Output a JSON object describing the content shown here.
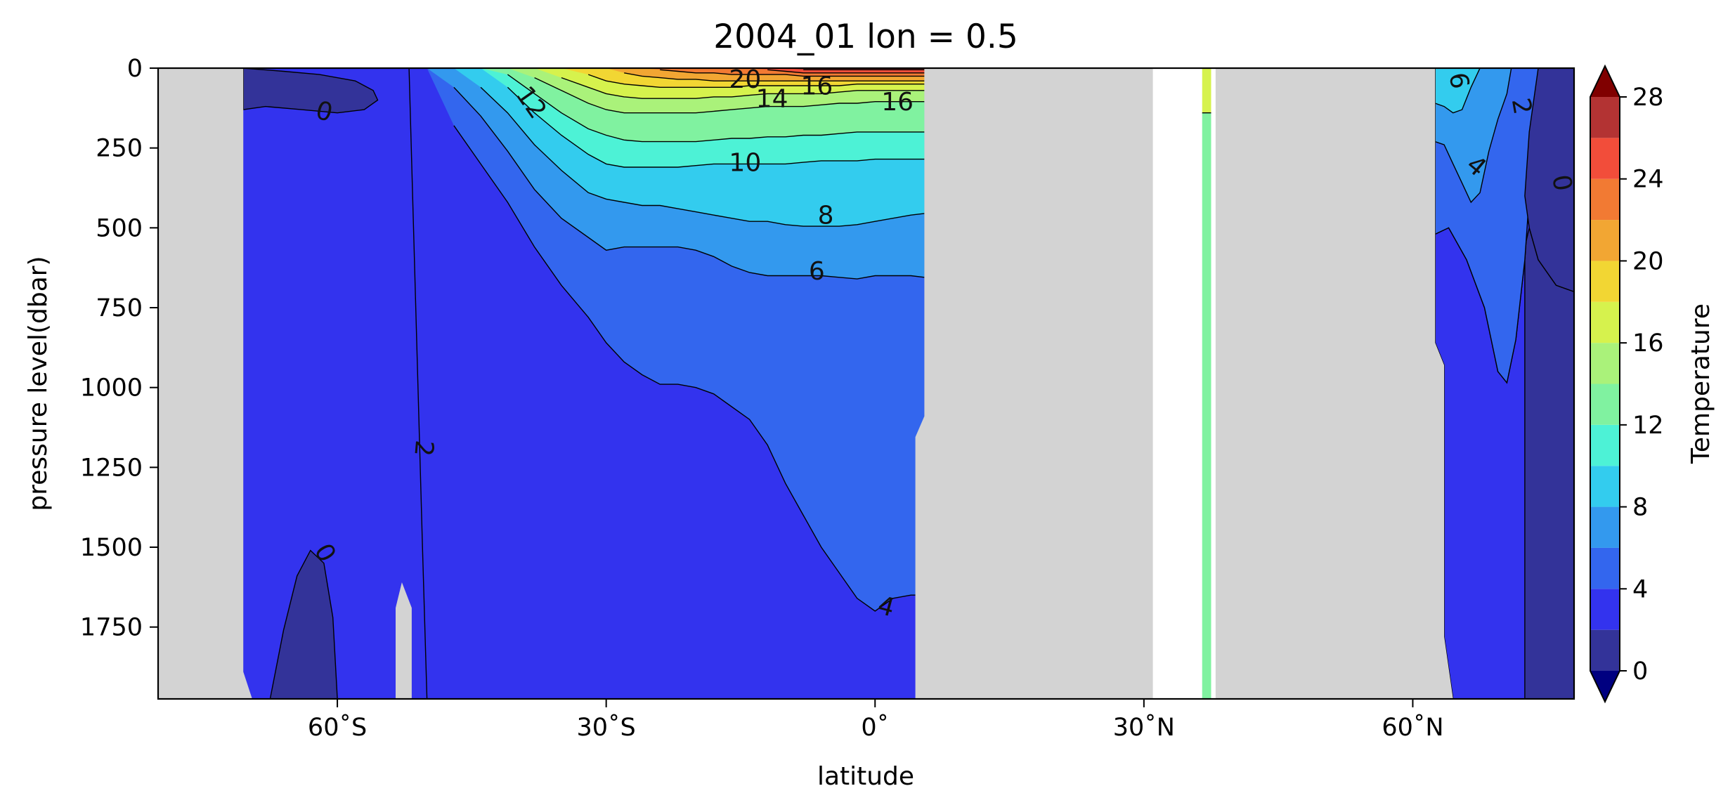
{
  "chart_data": {
    "type": "filled-contour",
    "title": "2004_01 lon = 0.5",
    "xlabel": "latitude",
    "ylabel": "pressure level(dbar)",
    "colorbar_label": "Temperature",
    "xlim": [
      -80,
      78
    ],
    "ylim": [
      1975,
      0
    ],
    "x_ticks": [
      {
        "value": -60,
        "label": "60˚S"
      },
      {
        "value": -30,
        "label": "30˚S"
      },
      {
        "value": 0,
        "label": "0˚"
      },
      {
        "value": 30,
        "label": "30˚N"
      },
      {
        "value": 60,
        "label": "60˚N"
      }
    ],
    "y_ticks": [
      {
        "value": 0,
        "label": "0"
      },
      {
        "value": 250,
        "label": "250"
      },
      {
        "value": 500,
        "label": "500"
      },
      {
        "value": 750,
        "label": "750"
      },
      {
        "value": 1000,
        "label": "1000"
      },
      {
        "value": 1250,
        "label": "1250"
      },
      {
        "value": 1500,
        "label": "1500"
      },
      {
        "value": 1750,
        "label": "1750"
      }
    ],
    "levels": [
      0,
      2,
      4,
      6,
      8,
      10,
      12,
      14,
      16,
      18,
      20,
      22,
      24,
      26,
      28
    ],
    "colorbar_ticks": [
      {
        "value": 0,
        "label": "0"
      },
      {
        "value": 4,
        "label": "4"
      },
      {
        "value": 8,
        "label": "8"
      },
      {
        "value": 12,
        "label": "12"
      },
      {
        "value": 16,
        "label": "16"
      },
      {
        "value": 20,
        "label": "20"
      },
      {
        "value": 24,
        "label": "24"
      },
      {
        "value": 28,
        "label": "28"
      }
    ],
    "level_colors": [
      "#333399",
      "#3333ee",
      "#3366ee",
      "#3399ee",
      "#33ccee",
      "#4df2d6",
      "#80f2a0",
      "#aaf27a",
      "#d6f24d",
      "#f2d633",
      "#f2a633",
      "#f27a33",
      "#f24d3a",
      "#b33333"
    ],
    "under_color": "#000080",
    "over_color": "#800000",
    "missing_color": "#d3d3d3",
    "masked_regions": [
      {
        "name": "antarctica",
        "points": [
          [
            -80,
            0
          ],
          [
            -70.5,
            0
          ],
          [
            -70.5,
            1890
          ],
          [
            -69.5,
            1975
          ],
          [
            -80,
            1975
          ]
        ]
      },
      {
        "name": "ridge",
        "points": [
          [
            -53.5,
            1975
          ],
          [
            -53.5,
            1690
          ],
          [
            -52.8,
            1610
          ],
          [
            -51.7,
            1690
          ],
          [
            -51.7,
            1975
          ]
        ]
      },
      {
        "name": "africa",
        "points": [
          [
            5.5,
            0
          ],
          [
            31,
            0
          ],
          [
            31,
            1975
          ],
          [
            4.5,
            1975
          ],
          [
            4.5,
            1155
          ],
          [
            5.5,
            1090
          ]
        ]
      },
      {
        "name": "europe",
        "points": [
          [
            38,
            0
          ],
          [
            62.5,
            0
          ],
          [
            62.5,
            860
          ],
          [
            63.5,
            930
          ],
          [
            63.5,
            1780
          ],
          [
            64.5,
            1975
          ],
          [
            38,
            1975
          ]
        ]
      }
    ],
    "strips": [
      {
        "name": "strait-upper",
        "x": [
          36.5,
          37.5
        ],
        "y": [
          0,
          140
        ],
        "value": 17
      },
      {
        "name": "strait-lower",
        "x": [
          36.5,
          37.5
        ],
        "y": [
          140,
          1975
        ],
        "value": 13
      }
    ],
    "profile_x": [
      -70.5,
      -65,
      -60,
      -55,
      -53,
      -50,
      -47,
      -44,
      -41,
      -38,
      -35,
      -32,
      -30,
      -28,
      -26,
      -24,
      -22,
      -20,
      -18,
      -16,
      -14,
      -12,
      -10,
      -8,
      -6,
      -4,
      -2,
      0,
      2,
      4,
      5.5
    ],
    "profile_depths": {
      "2": [
        1975,
        1975,
        1975,
        1975,
        1975,
        1975,
        1975,
        1975,
        1975,
        1975,
        1975,
        1975,
        1975,
        1975,
        1975,
        1975,
        1975,
        1975,
        1975,
        1975,
        1975,
        1975,
        1975,
        1975,
        1975,
        1975,
        1975,
        1975,
        1975,
        1975,
        1975
      ],
      "4": [
        0,
        0,
        0,
        0,
        0,
        0,
        180,
        300,
        420,
        560,
        680,
        780,
        860,
        920,
        960,
        990,
        990,
        1000,
        1020,
        1060,
        1100,
        1180,
        1300,
        1400,
        1500,
        1580,
        1660,
        1700,
        1660,
        1650,
        1650
      ],
      "6": [
        0,
        0,
        0,
        0,
        0,
        0,
        60,
        150,
        260,
        380,
        470,
        530,
        570,
        560,
        560,
        560,
        560,
        570,
        590,
        620,
        640,
        650,
        650,
        650,
        650,
        655,
        660,
        650,
        650,
        650,
        655
      ],
      "8": [
        0,
        0,
        0,
        0,
        0,
        0,
        0,
        60,
        140,
        240,
        320,
        390,
        410,
        420,
        430,
        430,
        440,
        450,
        460,
        470,
        480,
        480,
        490,
        495,
        495,
        495,
        490,
        480,
        470,
        460,
        455
      ],
      "10": [
        0,
        0,
        0,
        0,
        0,
        0,
        0,
        0,
        60,
        140,
        210,
        270,
        300,
        310,
        310,
        310,
        310,
        305,
        300,
        300,
        300,
        300,
        300,
        295,
        290,
        290,
        290,
        285,
        285,
        285,
        285
      ],
      "12": [
        0,
        0,
        0,
        0,
        0,
        0,
        0,
        0,
        20,
        80,
        140,
        190,
        210,
        225,
        230,
        230,
        230,
        230,
        225,
        220,
        220,
        215,
        215,
        210,
        210,
        205,
        200,
        200,
        200,
        200,
        200
      ],
      "14": [
        0,
        0,
        0,
        0,
        0,
        0,
        0,
        0,
        0,
        30,
        70,
        110,
        130,
        140,
        140,
        140,
        140,
        140,
        135,
        130,
        125,
        120,
        120,
        120,
        115,
        110,
        110,
        105,
        105,
        105,
        105
      ],
      "16": [
        0,
        0,
        0,
        0,
        0,
        0,
        0,
        0,
        0,
        0,
        30,
        60,
        80,
        90,
        95,
        95,
        95,
        95,
        90,
        90,
        85,
        80,
        80,
        80,
        80,
        75,
        70,
        70,
        70,
        70,
        70
      ],
      "18": [
        0,
        0,
        0,
        0,
        0,
        0,
        0,
        0,
        0,
        0,
        0,
        20,
        40,
        50,
        55,
        60,
        60,
        60,
        60,
        60,
        55,
        55,
        55,
        55,
        55,
        55,
        50,
        50,
        50,
        50,
        50
      ],
      "20": [
        0,
        0,
        0,
        0,
        0,
        0,
        0,
        0,
        0,
        0,
        0,
        0,
        0,
        15,
        25,
        30,
        35,
        35,
        40,
        40,
        40,
        40,
        40,
        40,
        40,
        40,
        40,
        40,
        40,
        40,
        40
      ],
      "22": [
        0,
        0,
        0,
        0,
        0,
        0,
        0,
        0,
        0,
        0,
        0,
        0,
        0,
        0,
        0,
        5,
        10,
        15,
        15,
        20,
        20,
        20,
        20,
        25,
        25,
        25,
        25,
        25,
        25,
        25,
        25
      ],
      "24": [
        0,
        0,
        0,
        0,
        0,
        0,
        0,
        0,
        0,
        0,
        0,
        0,
        0,
        0,
        0,
        0,
        0,
        0,
        0,
        0,
        0,
        5,
        10,
        15,
        15,
        15,
        15,
        15,
        15,
        15,
        15
      ],
      "26": [
        0,
        0,
        0,
        0,
        0,
        0,
        0,
        0,
        0,
        0,
        0,
        0,
        0,
        0,
        0,
        0,
        0,
        0,
        0,
        0,
        0,
        0,
        0,
        5,
        5,
        5,
        5,
        5,
        5,
        5,
        5
      ]
    },
    "cold_pools": [
      {
        "name": "cold-pool-surface",
        "level": 0,
        "points": [
          [
            -70.5,
            0
          ],
          [
            -70.5,
            130
          ],
          [
            -68,
            120
          ],
          [
            -64,
            130
          ],
          [
            -60,
            140
          ],
          [
            -57,
            130
          ],
          [
            -55.5,
            100
          ],
          [
            -56,
            70
          ],
          [
            -58,
            40
          ],
          [
            -62,
            20
          ],
          [
            -66,
            10
          ]
        ]
      },
      {
        "name": "cold-pool-bottom",
        "level": 0,
        "points": [
          [
            -67.5,
            1975
          ],
          [
            -66,
            1760
          ],
          [
            -64.5,
            1590
          ],
          [
            -63,
            1510
          ],
          [
            -61.5,
            1550
          ],
          [
            -60.5,
            1720
          ],
          [
            -60,
            1975
          ]
        ]
      },
      {
        "name": "arctic-band",
        "level": 0,
        "points": [
          [
            78,
            0
          ],
          [
            74,
            0
          ],
          [
            73,
            200
          ],
          [
            72.5,
            400
          ],
          [
            73,
            500
          ],
          [
            74,
            600
          ],
          [
            76,
            680
          ],
          [
            78,
            700
          ]
        ]
      }
    ],
    "north_regions": [
      {
        "name": "north-2",
        "level": 2,
        "points": [
          [
            64.5,
            1975
          ],
          [
            63.5,
            1780
          ],
          [
            63.5,
            930
          ],
          [
            62.5,
            860
          ],
          [
            62.5,
            520
          ],
          [
            64,
            500
          ],
          [
            66,
            600
          ],
          [
            68,
            750
          ],
          [
            69.5,
            950
          ],
          [
            70.5,
            985
          ],
          [
            71.5,
            850
          ],
          [
            72.5,
            600
          ],
          [
            73,
            400
          ],
          [
            73.5,
            200
          ],
          [
            74,
            0
          ],
          [
            78,
            0
          ],
          [
            78,
            700
          ],
          [
            76,
            680
          ],
          [
            74,
            600
          ],
          [
            73,
            500
          ],
          [
            72.5,
            560
          ],
          [
            72.5,
            1975
          ]
        ]
      },
      {
        "name": "north-4",
        "level": 4,
        "points": [
          [
            62.5,
            0
          ],
          [
            74,
            0
          ],
          [
            73.5,
            200
          ],
          [
            73,
            400
          ],
          [
            72.5,
            600
          ],
          [
            71.5,
            850
          ],
          [
            70.5,
            985
          ],
          [
            69.5,
            950
          ],
          [
            68,
            750
          ],
          [
            66,
            600
          ],
          [
            64,
            500
          ],
          [
            62.5,
            520
          ]
        ]
      },
      {
        "name": "north-6",
        "level": 6,
        "points": [
          [
            62.5,
            0
          ],
          [
            71,
            0
          ],
          [
            70.5,
            80
          ],
          [
            69.5,
            160
          ],
          [
            68.5,
            260
          ],
          [
            67.5,
            390
          ],
          [
            66.5,
            420
          ],
          [
            65.5,
            360
          ],
          [
            64.5,
            300
          ],
          [
            63.5,
            240
          ],
          [
            62.5,
            230
          ]
        ]
      },
      {
        "name": "north-8",
        "level": 8,
        "points": [
          [
            62.5,
            0
          ],
          [
            67.5,
            0
          ],
          [
            66.5,
            60
          ],
          [
            65.5,
            130
          ],
          [
            64.5,
            140
          ],
          [
            63.5,
            120
          ],
          [
            62.5,
            110
          ]
        ]
      }
    ],
    "contour_labels": [
      {
        "text": "0",
        "x": -61.5,
        "y": 140,
        "rotation": 15
      },
      {
        "text": "2",
        "x": -50.5,
        "y": 1190,
        "rotation": 95
      },
      {
        "text": "0",
        "x": -61.5,
        "y": 1520,
        "rotation": 60
      },
      {
        "text": "12",
        "x": -38.5,
        "y": 110,
        "rotation": 55
      },
      {
        "text": "20",
        "x": -14.5,
        "y": 40,
        "rotation": 0
      },
      {
        "text": "14",
        "x": -11.5,
        "y": 100,
        "rotation": 0
      },
      {
        "text": "16",
        "x": -6.5,
        "y": 60,
        "rotation": 0
      },
      {
        "text": "16",
        "x": 2.5,
        "y": 110,
        "rotation": 0
      },
      {
        "text": "10",
        "x": -14.5,
        "y": 300,
        "rotation": 0
      },
      {
        "text": "8",
        "x": -5.5,
        "y": 465,
        "rotation": 0
      },
      {
        "text": "6",
        "x": -6.5,
        "y": 640,
        "rotation": 0
      },
      {
        "text": "4",
        "x": 1.2,
        "y": 1690,
        "rotation": 15
      },
      {
        "text": "6",
        "x": 65,
        "y": 40,
        "rotation": 80
      },
      {
        "text": "2",
        "x": 72,
        "y": 120,
        "rotation": 80
      },
      {
        "text": "4",
        "x": 67,
        "y": 310,
        "rotation": 40
      },
      {
        "text": "0",
        "x": 76.5,
        "y": 360,
        "rotation": 80
      }
    ]
  }
}
